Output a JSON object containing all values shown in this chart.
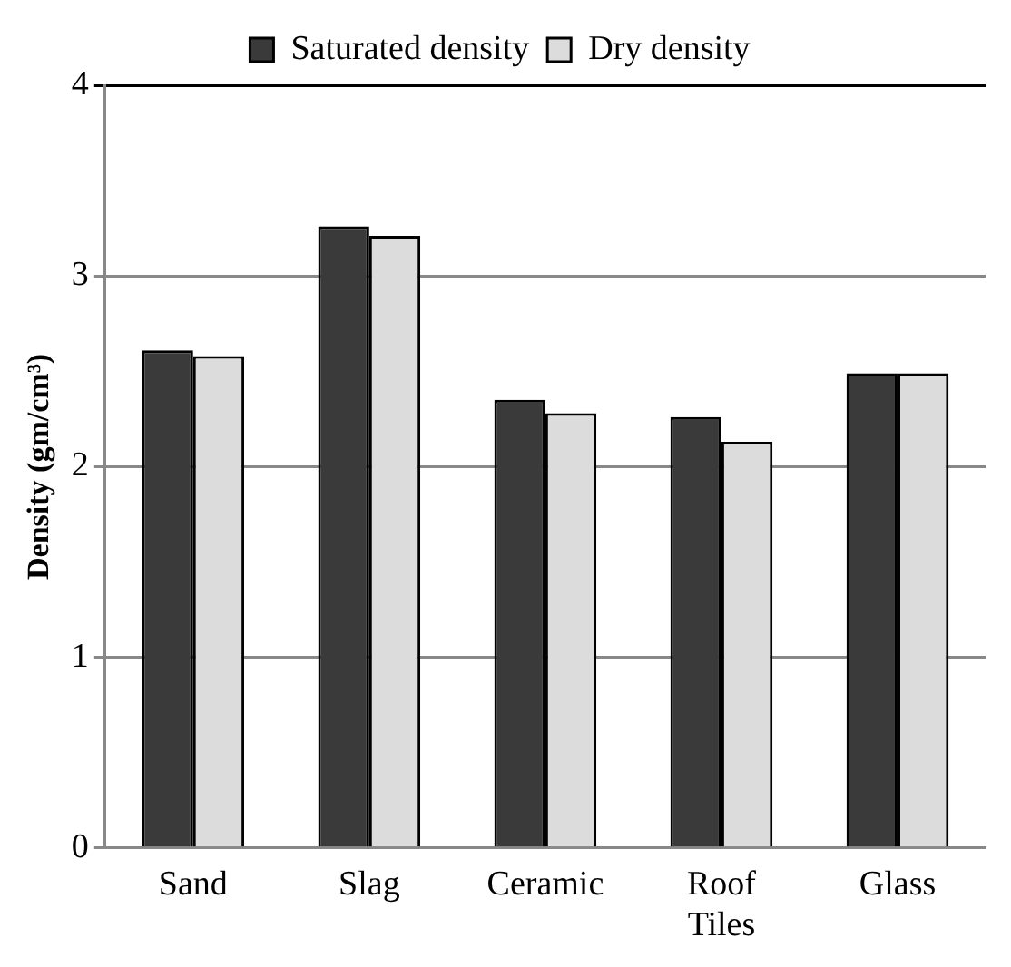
{
  "chart_data": {
    "type": "bar",
    "ylabel": "Density (gm/cm³)",
    "categories": [
      "Sand",
      "Slag",
      "Ceramic",
      "Roof Tiles",
      "Glass"
    ],
    "series": [
      {
        "name": "Saturated density",
        "color": "#3a3a3a",
        "values": [
          2.61,
          3.26,
          2.35,
          2.26,
          2.49
        ]
      },
      {
        "name": "Dry density",
        "color": "#dcdcdc",
        "values": [
          2.58,
          3.21,
          2.28,
          2.13,
          2.49
        ]
      }
    ],
    "ylim": [
      0,
      4
    ],
    "yticks": [
      0,
      1,
      2,
      3,
      4
    ],
    "grid": "y",
    "legend": "top"
  }
}
